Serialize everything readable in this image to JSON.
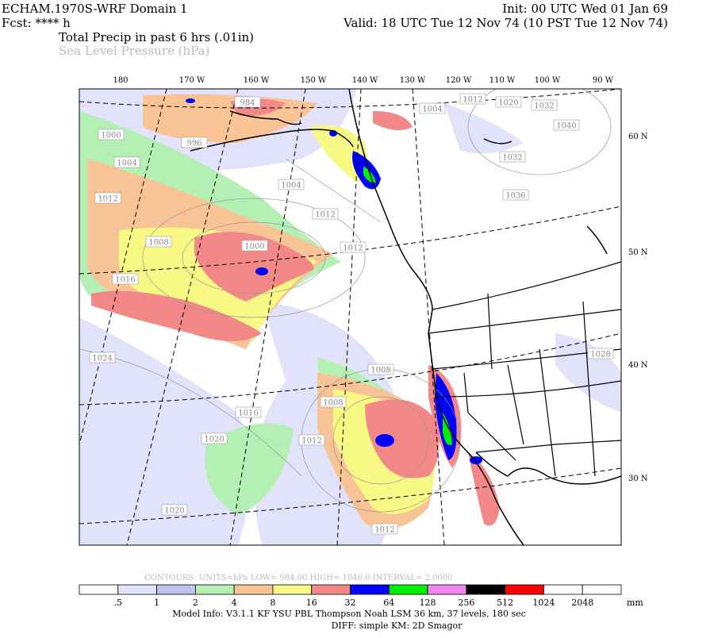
{
  "header": {
    "title": "ECHAM.1970S-WRF Domain 1",
    "init": "Init: 00 UTC Wed 01 Jan 69",
    "forecast": "Fcst: **** h",
    "valid": "Valid: 18 UTC Tue 12 Nov 74 (10 PST Tue 12 Nov 74)",
    "field_1": "Total Precip in past 6 hrs (.01in)",
    "field_2": "Sea Level Pressure (hPa)"
  },
  "map": {
    "longitude_labels": [
      "180",
      "170 W",
      "160 W",
      "150 W",
      "140 W",
      "130 W",
      "120 W",
      "110 W",
      "100 W",
      "90 W"
    ],
    "latitude_labels": [
      "60 N",
      "50 N",
      "40 N",
      "30 N"
    ],
    "pressure_labels": [
      "1004",
      "1012",
      "1020",
      "1032",
      "1040",
      "1032",
      "1036",
      "1004",
      "1012",
      "1012",
      "1000",
      "1008",
      "1016",
      "1024",
      "1008",
      "1008",
      "1012",
      "1016",
      "1020",
      "1020",
      "1012",
      "1028",
      "984",
      "1000",
      "1004",
      "996",
      "1012"
    ]
  },
  "contour_info": "CONTOURS:  UNITS=hPa  LOW=  984.00      HIGH=  1046.0      INTERVAL=   2.0000",
  "colorbar": {
    "colors": [
      "#ffffff",
      "#e2e2fa",
      "#c2c2f2",
      "#b4f0b4",
      "#f8c496",
      "#f8f884",
      "#f28888",
      "#0000ff",
      "#00ee00",
      "#f088f0",
      "#000000",
      "#ff0000",
      "#ffffff",
      "#ffffff"
    ],
    "labels": [
      ".5",
      "1",
      "2",
      "4",
      "8",
      "16",
      "32",
      "64",
      "128",
      "256",
      "512",
      "1024",
      "2048"
    ],
    "units": "mm"
  },
  "footer": {
    "model_info": "Model Info: V3.1.1    KF      YSU PBL   Thompson      Noah LSM   36 km,    37 levels,   180 sec",
    "diff": "DIFF: simple KM: 2D Smagor"
  }
}
